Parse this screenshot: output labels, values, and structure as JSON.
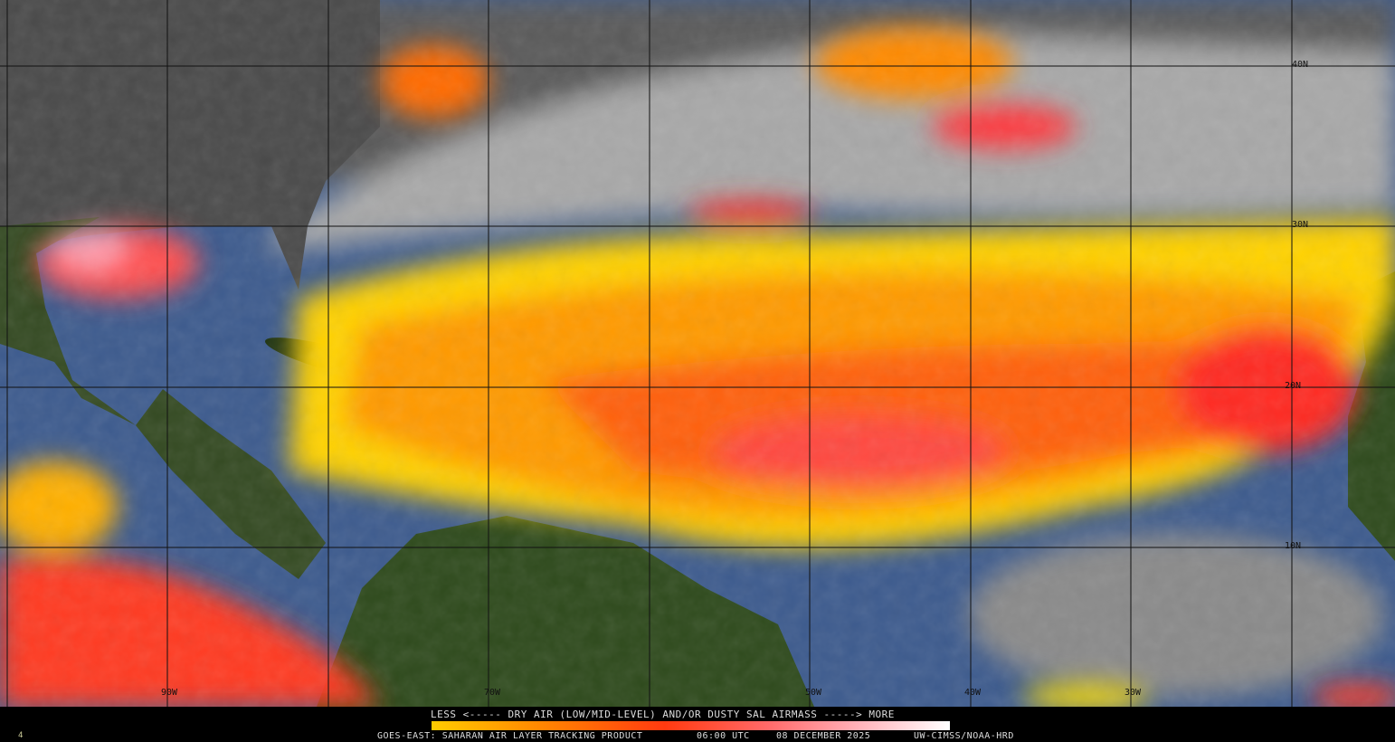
{
  "map": {
    "product": "GOES-EAST: SAHARAN AIR LAYER TRACKING PRODUCT",
    "time": "06:00 UTC",
    "date": "08 DECEMBER 2025",
    "credit": "UW-CIMSS/NOAA-HRD",
    "frame_number": "4",
    "legend": {
      "title": "LESS <----- DRY AIR (LOW/MID-LEVEL) AND/OR DUSTY SAL AIRMASS -----> MORE",
      "colors": [
        "#ffcc00",
        "#ff8a00",
        "#ff3a10",
        "#ff6a6a",
        "#ffb0b8",
        "#ffffff"
      ]
    },
    "latitude_labels": [
      "40N",
      "30N",
      "20N",
      "10N"
    ],
    "longitude_labels": [
      "90W",
      "70W",
      "50W",
      "40W",
      "30W"
    ],
    "colors": {
      "land": "#2c4a1a",
      "ocean_clear": "#3c5a8c",
      "cloud": "#b0b0b0",
      "sal_weak": "#ffd800",
      "sal_strong": "#ff2a20"
    }
  }
}
